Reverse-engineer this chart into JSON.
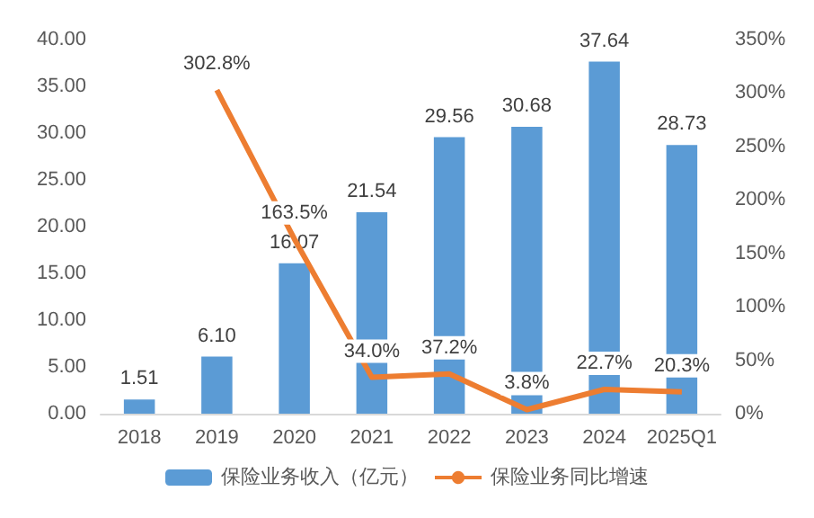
{
  "chart_data": {
    "type": "bar",
    "categories": [
      "2018",
      "2019",
      "2020",
      "2021",
      "2022",
      "2023",
      "2024",
      "2025Q1"
    ],
    "series": [
      {
        "name": "保险业务收入（亿元）",
        "color": "#5b9bd5",
        "values": [
          1.51,
          6.1,
          16.07,
          21.54,
          29.56,
          30.68,
          37.64,
          28.73
        ],
        "value_labels": [
          "1.51",
          "6.10",
          "16.07",
          "21.54",
          "29.56",
          "30.68",
          "37.64",
          "28.73"
        ]
      },
      {
        "name": "保险业务同比增速",
        "type": "line",
        "axis": "y2",
        "color": "#ed7d31",
        "values": [
          null,
          302.8,
          163.5,
          34.0,
          37.2,
          3.8,
          22.7,
          20.3
        ],
        "value_labels": [
          null,
          "302.8%",
          "163.5%",
          "34.0%",
          "37.2%",
          "3.8%",
          "22.7%",
          "20.3%"
        ]
      }
    ],
    "ylim": [
      0,
      40
    ],
    "yticks": [
      {
        "value": 0,
        "label": "0.00"
      },
      {
        "value": 5,
        "label": "5.00"
      },
      {
        "value": 10,
        "label": "10.00"
      },
      {
        "value": 15,
        "label": "15.00"
      },
      {
        "value": 20,
        "label": "20.00"
      },
      {
        "value": 25,
        "label": "25.00"
      },
      {
        "value": 30,
        "label": "30.00"
      },
      {
        "value": 35,
        "label": "35.00"
      },
      {
        "value": 40,
        "label": "40.00"
      }
    ],
    "y2lim": [
      0,
      350
    ],
    "y2ticks": [
      {
        "value": 0,
        "label": "0%"
      },
      {
        "value": 50,
        "label": "50%"
      },
      {
        "value": 100,
        "label": "100%"
      },
      {
        "value": 150,
        "label": "150%"
      },
      {
        "value": 200,
        "label": "200%"
      },
      {
        "value": 250,
        "label": "250%"
      },
      {
        "value": 300,
        "label": "300%"
      },
      {
        "value": 350,
        "label": "350%"
      }
    ],
    "grid": false,
    "legend": "bottom",
    "marker": "none",
    "line_style": "solid"
  }
}
